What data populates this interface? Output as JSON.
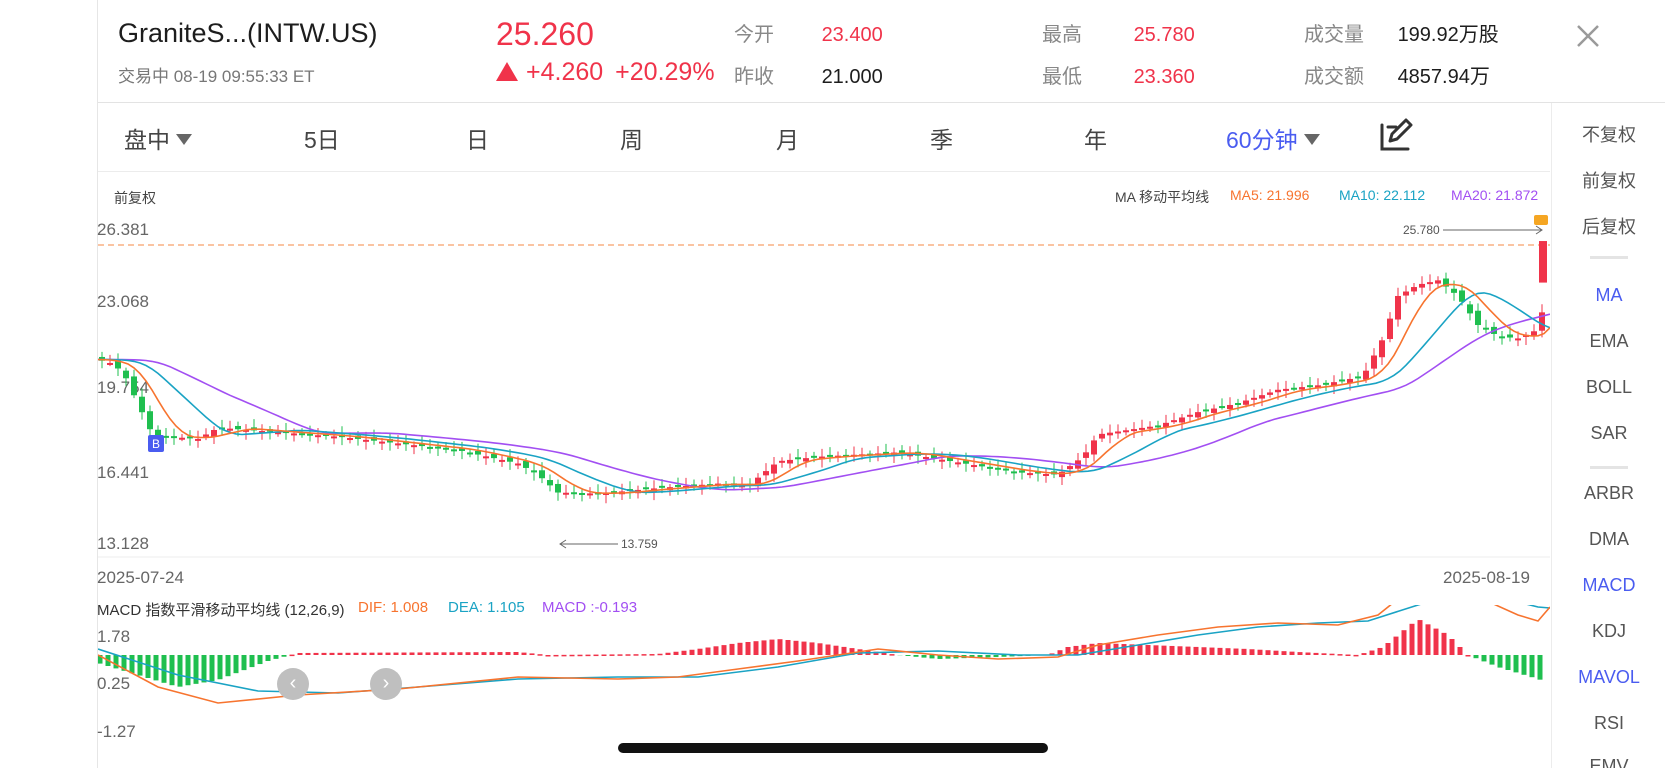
{
  "header": {
    "title": "GraniteS...(INTW.US)",
    "status": "交易中 08-19 09:55:33  ET",
    "price": "25.260",
    "change": "+4.260",
    "change_pct": "+20.29%",
    "stats": [
      {
        "label": "今开",
        "value": "23.400",
        "color": "red"
      },
      {
        "label": "昨收",
        "value": "21.000",
        "color": "black"
      },
      {
        "label": "最高",
        "value": "25.780",
        "color": "red"
      },
      {
        "label": "最低",
        "value": "23.360",
        "color": "red"
      },
      {
        "label": "成交量",
        "value": "199.92万股",
        "color": "black"
      },
      {
        "label": "成交额",
        "value": "4857.94万",
        "color": "black"
      }
    ],
    "close_icon": "close-icon"
  },
  "tabs": [
    {
      "label": "盘中",
      "dropdown": true
    },
    {
      "label": "5日"
    },
    {
      "label": "日"
    },
    {
      "label": "周"
    },
    {
      "label": "月"
    },
    {
      "label": "季"
    },
    {
      "label": "年"
    },
    {
      "label": "60分钟",
      "dropdown": true,
      "active": true
    }
  ],
  "draw_icon": "edit-pen-icon",
  "sidebar": {
    "items": [
      "不复权",
      "前复权",
      "后复权",
      "MA",
      "EMA",
      "BOLL",
      "SAR",
      "ARBR",
      "DMA",
      "MACD",
      "KDJ",
      "MAVOL",
      "RSI",
      "EMV"
    ],
    "active": [
      "MA",
      "MACD",
      "MAVOL"
    ]
  },
  "main_chart": {
    "adjust_label": "前复权",
    "legend_title": "MA 移动平均线",
    "ma5": "MA5: 21.996",
    "ma10": "MA10: 22.112",
    "ma20": "MA20: 21.872",
    "y_ticks": [
      "26.381",
      "23.068",
      "19.754",
      "16.441",
      "13.128"
    ],
    "high_marker": "25.780",
    "low_marker": "13.759",
    "buy_marker": "B",
    "start_date": "2025-07-24",
    "end_date": "2025-08-19"
  },
  "macd": {
    "title": "MACD 指数平滑移动平均线 (12,26,9)",
    "dif": "DIF: 1.008",
    "dea": "DEA: 1.105",
    "macd": "MACD :-0.193",
    "y_ticks": [
      "1.78",
      "0.25",
      "-1.27"
    ]
  },
  "colors": {
    "up": "#f0334a",
    "down": "#1fbf4f",
    "accent": "#4a5cf0",
    "ma5": "#f7742f",
    "ma10": "#1aa3c4",
    "ma20": "#a24ff2"
  }
}
